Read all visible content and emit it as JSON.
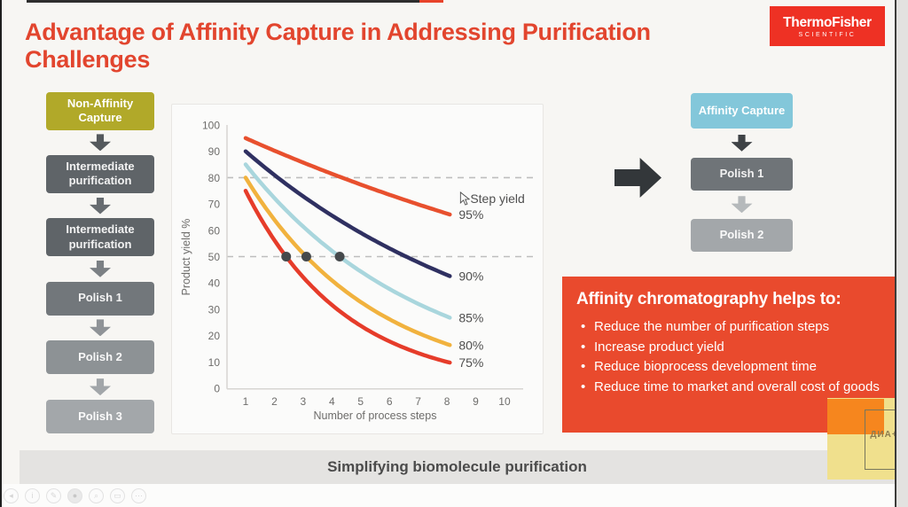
{
  "header": {
    "title": "Advantage of Affinity Capture in Addressing Purification Challenges",
    "title_color": "#e2452e",
    "logo": {
      "line1": "ThermoFisher",
      "line2": "SCIENTIFIC",
      "bg": "#ee3124"
    }
  },
  "left_flow": {
    "items": [
      {
        "label": "Non-Affinity Capture",
        "bg": "#b1a929",
        "fg": "#ffffff"
      },
      {
        "label": "Intermediate purification",
        "bg": "#5f6468",
        "fg": "#f2f2f2"
      },
      {
        "label": "Intermediate purification",
        "bg": "#5f6468",
        "fg": "#f2f2f2"
      },
      {
        "label": "Polish 1",
        "bg": "#72777b",
        "fg": "#f3f3f3"
      },
      {
        "label": "Polish 2",
        "bg": "#8d9295",
        "fg": "#f7f7f7"
      },
      {
        "label": "Polish 3",
        "bg": "#a3a7aa",
        "fg": "#fafafa"
      }
    ],
    "arrow_colors": [
      "#54595d",
      "#676c70",
      "#7b8084",
      "#8f9397",
      "#a2a6a9"
    ]
  },
  "right_flow": {
    "items": [
      {
        "label": "Affinity Capture",
        "bg": "#83c7da",
        "fg": "#ffffff"
      },
      {
        "label": "Polish 1",
        "bg": "#6f7478",
        "fg": "#f2f2f2"
      },
      {
        "label": "Polish 2",
        "bg": "#a3a7aa",
        "fg": "#fafafa"
      }
    ],
    "arrow_colors": [
      "#3f4346",
      "#b5b9bb"
    ]
  },
  "chart_data": {
    "type": "line",
    "title": "",
    "xlabel": "Number of process steps",
    "ylabel": "Product yield %",
    "xlim": [
      1,
      10
    ],
    "ylim": [
      0,
      100
    ],
    "x_ticks": [
      1,
      2,
      3,
      4,
      5,
      6,
      7,
      8,
      9,
      10
    ],
    "y_ticks": [
      0,
      10,
      20,
      30,
      40,
      50,
      60,
      70,
      80,
      90,
      100
    ],
    "grid": "off",
    "legend_position": "right-end-labels",
    "annotation": "Step yield",
    "reference_lines_y": [
      80,
      50
    ],
    "series": [
      {
        "name": "95%",
        "step_yield": 0.95,
        "color": "#e8502e",
        "x": [
          1,
          2,
          3,
          4,
          5,
          6,
          7,
          8
        ],
        "values": [
          95.0,
          90.3,
          85.7,
          81.5,
          77.4,
          73.5,
          69.8,
          66.3
        ]
      },
      {
        "name": "90%",
        "step_yield": 0.9,
        "color": "#2f3061",
        "x": [
          1,
          2,
          3,
          4,
          5,
          6,
          7,
          8
        ],
        "values": [
          90.0,
          81.0,
          72.9,
          65.6,
          59.0,
          53.1,
          47.8,
          43.0
        ]
      },
      {
        "name": "85%",
        "step_yield": 0.85,
        "color": "#a9d6dd",
        "x": [
          1,
          2,
          3,
          4,
          5,
          6,
          7,
          8
        ],
        "values": [
          85.0,
          72.3,
          61.4,
          52.2,
          44.4,
          37.7,
          32.1,
          27.2
        ]
      },
      {
        "name": "80%",
        "step_yield": 0.8,
        "color": "#f1b23e",
        "x": [
          1,
          2,
          3,
          4,
          5,
          6,
          7,
          8
        ],
        "values": [
          80.0,
          64.0,
          51.2,
          41.0,
          32.8,
          26.2,
          21.0,
          16.8
        ]
      },
      {
        "name": "75%",
        "step_yield": 0.75,
        "color": "#e63c2a",
        "x": [
          1,
          2,
          3,
          4,
          5,
          6,
          7,
          8
        ],
        "values": [
          75.0,
          56.3,
          42.2,
          31.6,
          23.7,
          17.8,
          13.3,
          10.0
        ]
      }
    ],
    "markers": [
      {
        "x": 2.41,
        "y": 50
      },
      {
        "x": 3.11,
        "y": 50
      },
      {
        "x": 4.27,
        "y": 50
      }
    ]
  },
  "benefits": {
    "bg": "#e94a2d",
    "title": "Affinity chromatography helps to:",
    "bullets": [
      "Reduce the number of purification steps",
      "Increase product yield",
      "Reduce bioprocess development time",
      "Reduce time to market and overall cost of goods"
    ]
  },
  "footer": {
    "text": "Simplifying biomolecule purification"
  },
  "overlay": {
    "watermark_text": "ДИА+"
  },
  "player_toolbar": {
    "icons": [
      {
        "name": "back",
        "glyph": "◂"
      },
      {
        "name": "info",
        "glyph": "i"
      },
      {
        "name": "pen",
        "glyph": "✎"
      },
      {
        "name": "camera",
        "glyph": "●"
      },
      {
        "name": "search",
        "glyph": "⌕"
      },
      {
        "name": "card",
        "glyph": "▭"
      },
      {
        "name": "more",
        "glyph": "⋯"
      }
    ]
  }
}
